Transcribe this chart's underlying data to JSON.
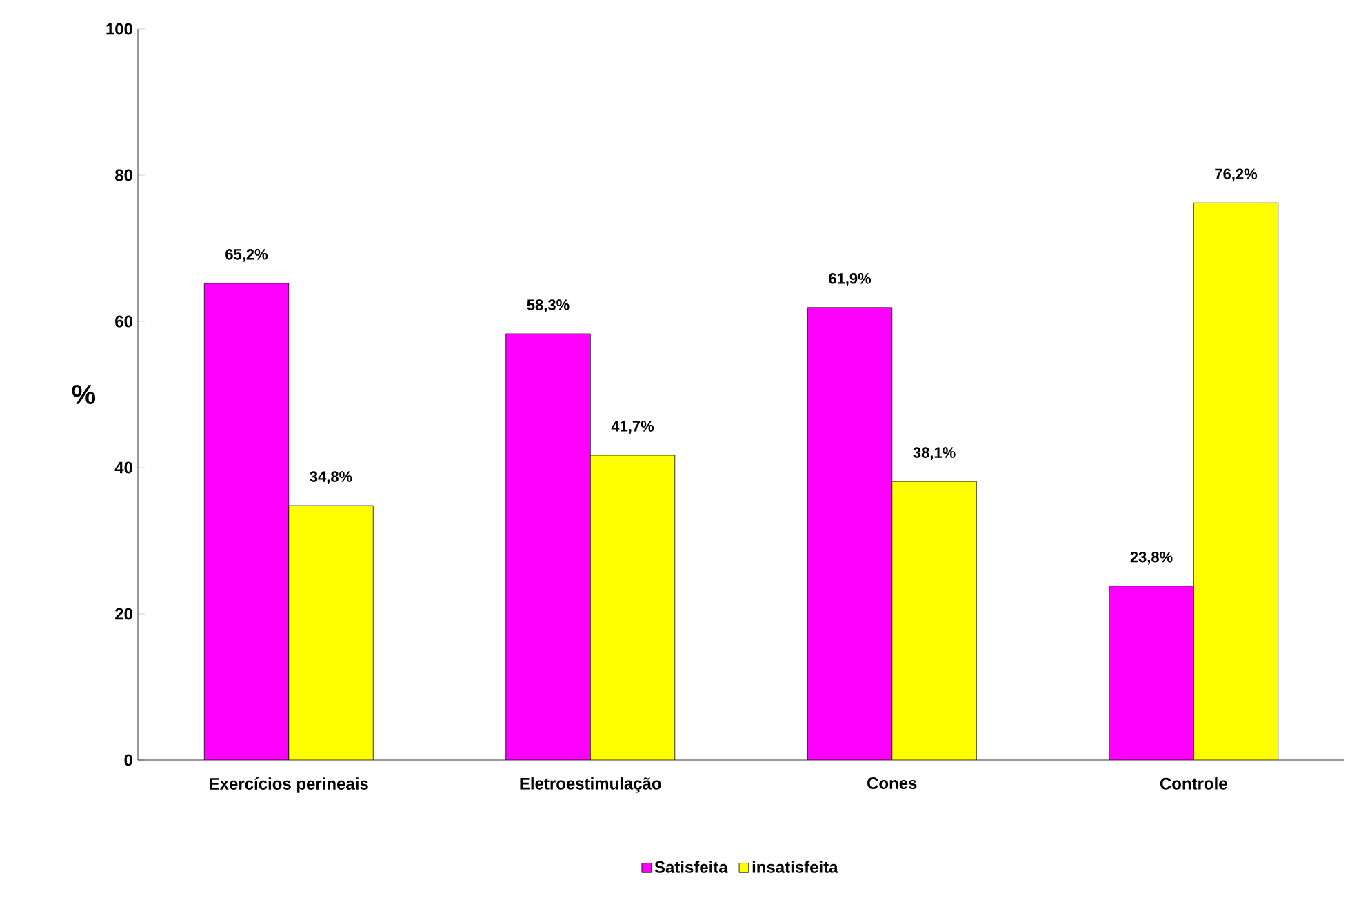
{
  "chart_data": {
    "type": "bar",
    "ylabel": "%",
    "categories": [
      "Exercícios perineais",
      "Eletroestimulação",
      "Cones",
      "Controle"
    ],
    "series": [
      {
        "name": "Satisfeita",
        "color": "#ff00ff",
        "values": [
          65.2,
          58.3,
          61.9,
          23.8
        ],
        "value_labels": [
          "65,2%",
          "58,3%",
          "61,9%",
          "23,8%"
        ]
      },
      {
        "name": "insatisfeita",
        "color": "#ffff00",
        "values": [
          34.8,
          41.7,
          38.1,
          76.2
        ],
        "value_labels": [
          "34,8%",
          "41,7%",
          "38,1%",
          "76,2%"
        ]
      }
    ],
    "ylim": [
      0,
      100
    ],
    "yticks": [
      0,
      20,
      40,
      60,
      80,
      100
    ],
    "grid": false,
    "legend": "bottom"
  }
}
